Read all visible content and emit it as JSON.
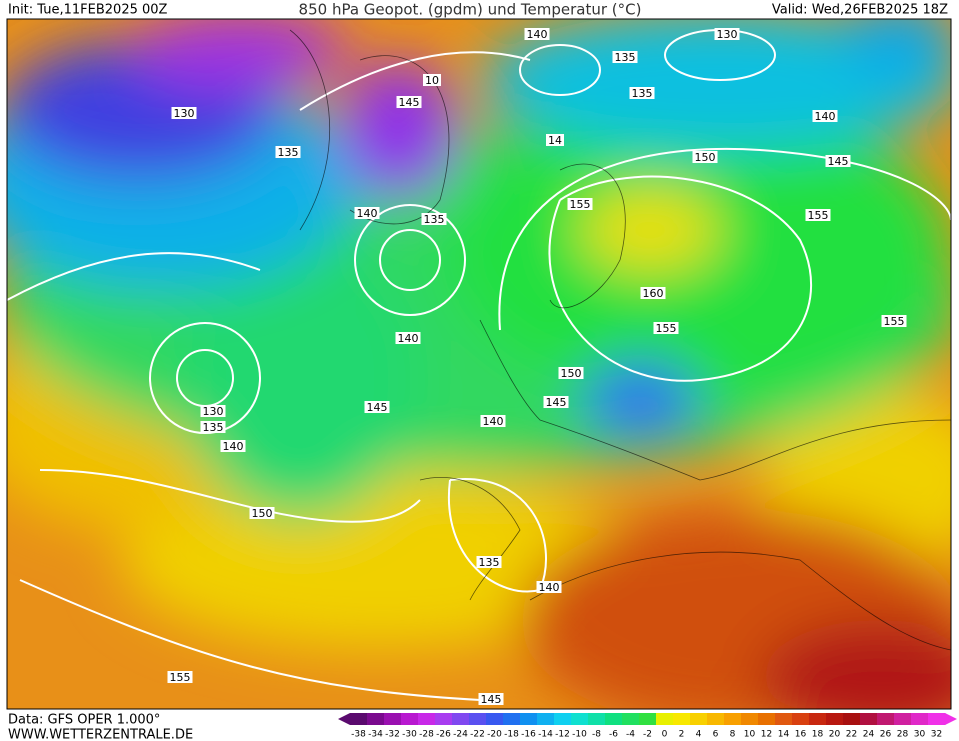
{
  "header": {
    "init": "Init: Tue,11FEB2025 00Z",
    "title": "850 hPa Geopot. (gpdm) und Temperatur (°C)",
    "valid": "Valid: Wed,26FEB2025 18Z"
  },
  "footer": {
    "data_source": "Data: GFS OPER 1.000°",
    "website": "WWW.WETTERZENTRALE.DE"
  },
  "contour_labels": [
    "140",
    "135",
    "130",
    "135",
    "10",
    "145",
    "130",
    "135",
    "14",
    "150",
    "140",
    "145",
    "155",
    "155",
    "140",
    "135",
    "160",
    "155",
    "155",
    "140",
    "150",
    "145",
    "145",
    "140",
    "130",
    "135",
    "140",
    "150",
    "135",
    "140",
    "155",
    "145"
  ],
  "legend": {
    "labels": [
      "-38",
      "-34",
      "-32",
      "-30",
      "-28",
      "-26",
      "-24",
      "-22",
      "-20",
      "-18",
      "-16",
      "-14",
      "-12",
      "-10",
      "-8",
      "-6",
      "-4",
      "-2",
      "0",
      "2",
      "4",
      "6",
      "8",
      "10",
      "12",
      "14",
      "16",
      "18",
      "20",
      "22",
      "24",
      "26",
      "28",
      "30",
      "32"
    ],
    "colors": [
      "#5a0a6e",
      "#7a0a8e",
      "#9a10b0",
      "#b818d0",
      "#c828e8",
      "#a83cf0",
      "#8048f0",
      "#5a50f0",
      "#3858f0",
      "#2070f0",
      "#1090f0",
      "#10b0f0",
      "#10d0f0",
      "#10e0d0",
      "#10e0a8",
      "#10e080",
      "#20e060",
      "#30e040",
      "#e8f000",
      "#f8e800",
      "#f8d000",
      "#f8b800",
      "#f8a000",
      "#f08800",
      "#e87000",
      "#e05810",
      "#d84010",
      "#c82810",
      "#b81810",
      "#a81010",
      "#b01040",
      "#c01870",
      "#d020a0",
      "#e028c8",
      "#f030e8"
    ]
  }
}
